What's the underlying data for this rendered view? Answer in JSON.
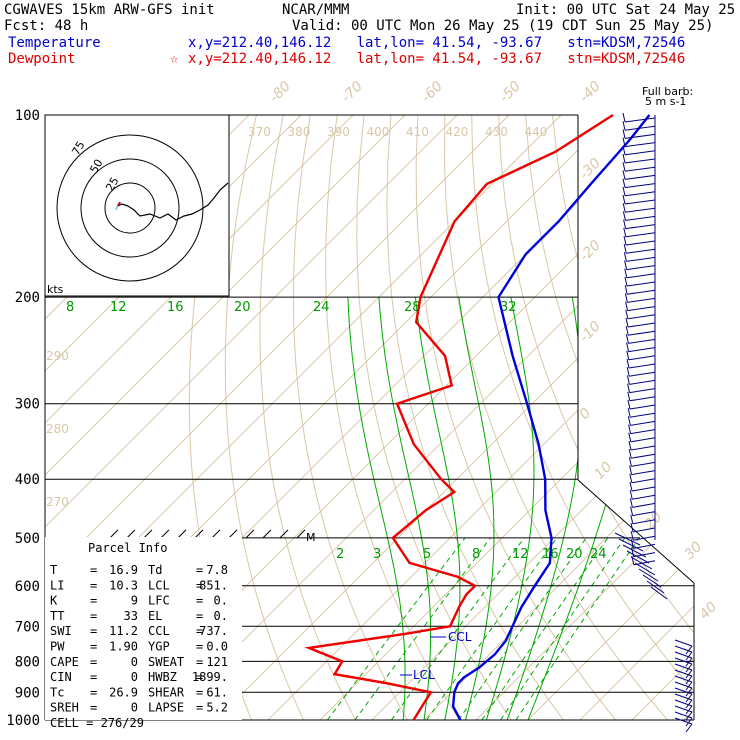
{
  "header": {
    "line1_left": "CGWAVES 15km ARW-GFS init",
    "line1_center": "NCAR/MMM",
    "line1_right": "Init: 00 UTC Sat 24 May 25",
    "line2_left": "Fcst:   48 h",
    "line2_right": "Valid: 00 UTC Mon 26 May 25 (19 CDT Sun 25 May 25)",
    "temperature_label": "Temperature",
    "temperature_info": "x,y=212.40,146.12   lat,lon= 41.54, -93.67   stn=KDSM,72546",
    "dewpoint_label": "Dewpoint",
    "dewpoint_info": "x,y=212.40,146.12   lat,lon= 41.54, -93.67   stn=KDSM,72546",
    "star_glyph": "☆"
  },
  "wind_key": {
    "line1": "Full barb:",
    "line2": "5 m s-1"
  },
  "hodograph": {
    "units": "kts",
    "rings": [
      "75",
      "50",
      "25"
    ]
  },
  "parcel_info": {
    "title": "Parcel Info",
    "rows": [
      {
        "k1": "T",
        "v1": "16.9",
        "k2": "Td",
        "v2": "7.8"
      },
      {
        "k1": "LI",
        "v1": "10.3",
        "k2": "LCL",
        "v2": "851."
      },
      {
        "k1": "K",
        "v1": "9",
        "k2": "LFC",
        "v2": "0."
      },
      {
        "k1": "TT",
        "v1": "33",
        "k2": "EL",
        "v2": "0."
      },
      {
        "k1": "SWI",
        "v1": "11.2",
        "k2": "CCL",
        "v2": "737."
      },
      {
        "k1": "PW",
        "v1": "1.90",
        "k2": "YGP",
        "v2": "0.0"
      },
      {
        "k1": "CAPE",
        "v1": "0",
        "k2": "SWEAT",
        "v2": "121"
      },
      {
        "k1": "CIN",
        "v1": "0",
        "k2": "HWBZ",
        "v2": "1899."
      },
      {
        "k1": "Tc",
        "v1": "26.9",
        "k2": "SHEAR",
        "v2": "61."
      },
      {
        "k1": "SREH",
        "v1": "0",
        "k2": "LAPSE",
        "v2": "5.2"
      }
    ],
    "cell": "CELL = 276/29"
  },
  "markers": {
    "ccl": "CCL",
    "lcl": "LCL",
    "m": "M"
  },
  "chart_data": {
    "type": "skew-t log-p sounding",
    "pressure_levels": [
      100,
      200,
      300,
      400,
      500,
      600,
      700,
      800,
      900,
      1000
    ],
    "pressure_labels": [
      "100",
      "200",
      "300",
      "400",
      "500",
      "600",
      "700",
      "800",
      "900",
      "1000"
    ],
    "isotherm_labels": [
      "-80",
      "-70",
      "-60",
      "-50",
      "-40",
      "-30",
      "-20",
      "-10",
      "0",
      "10",
      "20",
      "30",
      "40"
    ],
    "isotherm_values": [
      -80,
      -70,
      -60,
      -50,
      -40,
      -30,
      -20,
      -10,
      0,
      10,
      20,
      30,
      40
    ],
    "theta_labels": [
      "370",
      "380",
      "390",
      "400",
      "410",
      "420",
      "430",
      "440"
    ],
    "theta_side_labels": [
      "290",
      "280",
      "270"
    ],
    "mixing_ratio_labels_200": [
      "8",
      "12",
      "16",
      "20",
      "24",
      "28",
      "32"
    ],
    "mixing_ratio_labels_500": [
      "2",
      "3",
      "5",
      "8",
      "12",
      "16",
      "20",
      "24"
    ],
    "temperature_profile": [
      {
        "p": 1000,
        "t": 17
      },
      {
        "p": 950,
        "t": 13
      },
      {
        "p": 900,
        "t": 10.5
      },
      {
        "p": 870,
        "t": 9.5
      },
      {
        "p": 850,
        "t": 9.5
      },
      {
        "p": 820,
        "t": 10.5
      },
      {
        "p": 780,
        "t": 11
      },
      {
        "p": 740,
        "t": 10.5
      },
      {
        "p": 700,
        "t": 9
      },
      {
        "p": 650,
        "t": 7
      },
      {
        "p": 600,
        "t": 5.5
      },
      {
        "p": 550,
        "t": 4
      },
      {
        "p": 500,
        "t": -0.5
      },
      {
        "p": 450,
        "t": -7
      },
      {
        "p": 400,
        "t": -13
      },
      {
        "p": 350,
        "t": -21
      },
      {
        "p": 300,
        "t": -31
      },
      {
        "p": 250,
        "t": -43
      },
      {
        "p": 200,
        "t": -57
      },
      {
        "p": 170,
        "t": -60
      },
      {
        "p": 150,
        "t": -60
      },
      {
        "p": 130,
        "t": -61
      },
      {
        "p": 110,
        "t": -62
      },
      {
        "p": 100,
        "t": -63
      }
    ],
    "dewpoint_profile": [
      {
        "p": 1000,
        "t": 8
      },
      {
        "p": 950,
        "t": 7
      },
      {
        "p": 900,
        "t": 6
      },
      {
        "p": 870,
        "t": -4
      },
      {
        "p": 840,
        "t": -16
      },
      {
        "p": 800,
        "t": -17
      },
      {
        "p": 760,
        "t": -26
      },
      {
        "p": 720,
        "t": -10
      },
      {
        "p": 700,
        "t": -3
      },
      {
        "p": 650,
        "t": -5
      },
      {
        "p": 620,
        "t": -6
      },
      {
        "p": 600,
        "t": -6
      },
      {
        "p": 580,
        "t": -11
      },
      {
        "p": 550,
        "t": -23
      },
      {
        "p": 500,
        "t": -31
      },
      {
        "p": 450,
        "t": -30
      },
      {
        "p": 420,
        "t": -28
      },
      {
        "p": 400,
        "t": -33
      },
      {
        "p": 350,
        "t": -45
      },
      {
        "p": 300,
        "t": -56
      },
      {
        "p": 280,
        "t": -49
      },
      {
        "p": 250,
        "t": -56
      },
      {
        "p": 220,
        "t": -68
      },
      {
        "p": 200,
        "t": -72
      },
      {
        "p": 150,
        "t": -80
      },
      {
        "p": 130,
        "t": -81
      },
      {
        "p": 115,
        "t": -74
      },
      {
        "p": 100,
        "t": -70
      }
    ],
    "grid": true
  }
}
